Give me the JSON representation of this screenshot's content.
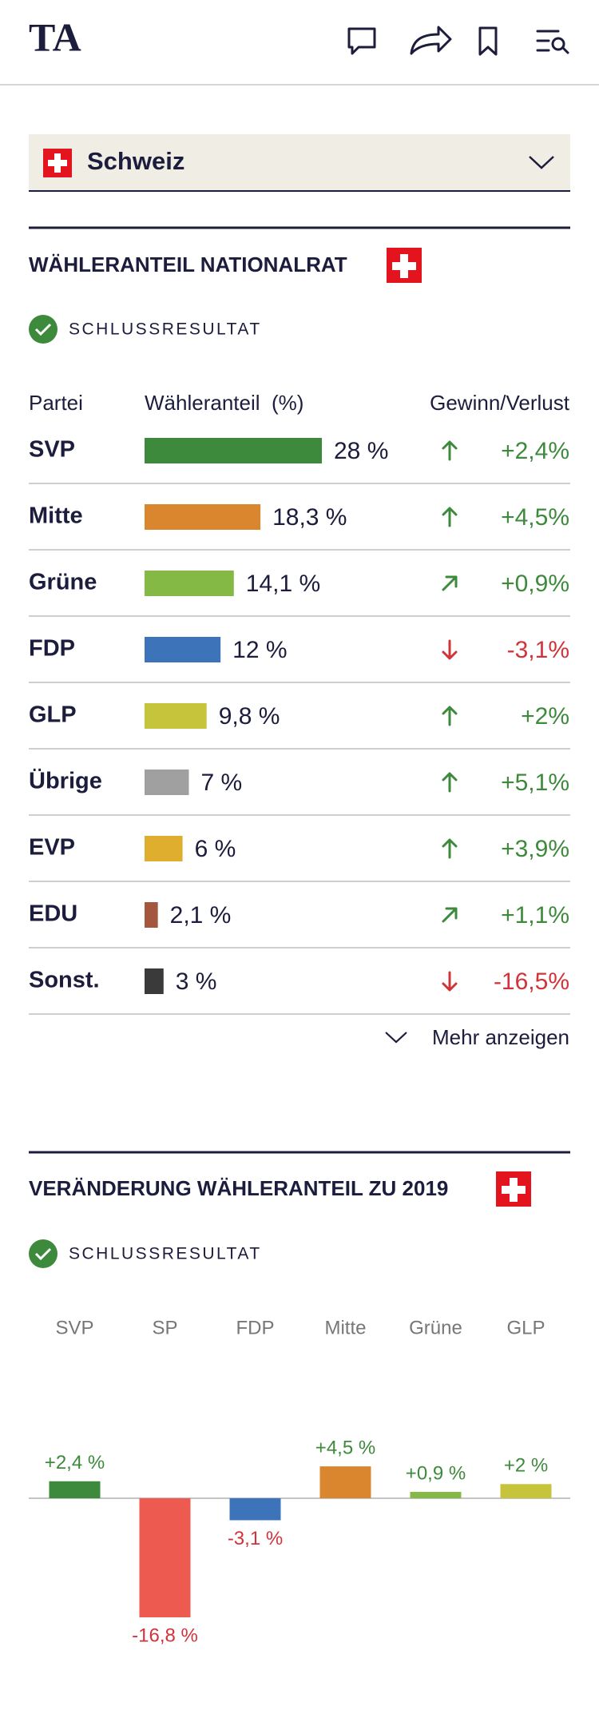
{
  "header": {
    "logo": "TA"
  },
  "selector": {
    "label": "Schweiz"
  },
  "table_section": {
    "title": "WÄHLERANTEIL NATIONALRAT",
    "status": "SCHLUSSRESULTAT",
    "columns": [
      "Partei",
      "Wähleranteil  (%)",
      "Gewinn/Verlust"
    ],
    "rows": [
      {
        "party": "SVP",
        "share": 28,
        "share_label": "28 %",
        "color": "#3e8a3c",
        "change": 2.4,
        "change_label": "+2,4%",
        "trend": "up"
      },
      {
        "party": "Mitte",
        "share": 18.3,
        "share_label": "18,3 %",
        "color": "#d9862e",
        "change": 4.5,
        "change_label": "+4,5%",
        "trend": "up"
      },
      {
        "party": "Grüne",
        "share": 14.1,
        "share_label": "14,1 %",
        "color": "#84b945",
        "change": 0.9,
        "change_label": "+0,9%",
        "trend": "up-right"
      },
      {
        "party": "FDP",
        "share": 12,
        "share_label": "12 %",
        "color": "#3c73b9",
        "change": -3.1,
        "change_label": "-3,1%",
        "trend": "down"
      },
      {
        "party": "GLP",
        "share": 9.8,
        "share_label": "9,8 %",
        "color": "#c6c43a",
        "change": 2,
        "change_label": "+2%",
        "trend": "up"
      },
      {
        "party": "Übrige",
        "share": 7,
        "share_label": "7 %",
        "color": "#a0a0a0",
        "change": 5.1,
        "change_label": "+5,1%",
        "trend": "up"
      },
      {
        "party": "EVP",
        "share": 6,
        "share_label": "6 %",
        "color": "#e0ae2e",
        "change": 3.9,
        "change_label": "+3,9%",
        "trend": "up"
      },
      {
        "party": "EDU",
        "share": 2.1,
        "share_label": "2,1 %",
        "color": "#a4573e",
        "change": 1.1,
        "change_label": "+1,1%",
        "trend": "up-right"
      },
      {
        "party": "Sonst.",
        "share": 3,
        "share_label": "3 %",
        "color": "#3a3a3a",
        "change": -16.5,
        "change_label": "-16,5%",
        "trend": "down"
      }
    ],
    "more": "Mehr anzeigen"
  },
  "chart_data": {
    "type": "bar",
    "title": "VERÄNDERUNG WÄHLERANTEIL ZU 2019",
    "subtitle": "SCHLUSSRESULTAT",
    "categories": [
      "SVP",
      "SP",
      "FDP",
      "Mitte",
      "Grüne",
      "GLP"
    ],
    "values": [
      2.4,
      -16.8,
      -3.1,
      4.5,
      0.9,
      2
    ],
    "value_labels": [
      "+2,4 %",
      "-16,8 %",
      "-3,1 %",
      "+4,5 %",
      "+0,9 %",
      "+2 %"
    ],
    "colors": [
      "#3e8a3c",
      "#ec5a50",
      "#3c73b9",
      "#d9862e",
      "#84b945",
      "#c6c43a"
    ]
  }
}
